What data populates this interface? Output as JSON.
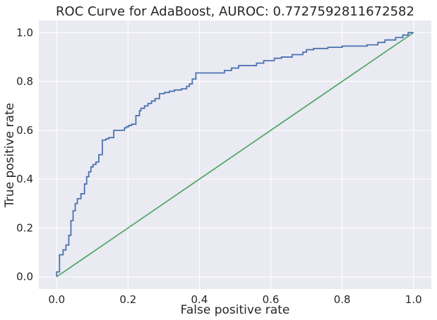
{
  "chart_data": {
    "type": "line",
    "title": "ROC Curve for AdaBoost, AUROC: 0.7727592811672582",
    "xlabel": "False positive rate",
    "ylabel": "True positive rate",
    "xlim": [
      -0.05,
      1.05
    ],
    "ylim": [
      -0.05,
      1.05
    ],
    "xticks": [
      "0.0",
      "0.2",
      "0.4",
      "0.6",
      "0.8",
      "1.0"
    ],
    "yticks": [
      "0.0",
      "0.2",
      "0.4",
      "0.6",
      "0.8",
      "1.0"
    ],
    "grid": true,
    "background": "#eaeaf2",
    "grid_color": "#ffffff",
    "series": [
      {
        "color": "#4c72b0",
        "step": true,
        "x": [
          0.0,
          0.0,
          0.008,
          0.008,
          0.018,
          0.018,
          0.026,
          0.026,
          0.034,
          0.034,
          0.04,
          0.04,
          0.046,
          0.046,
          0.052,
          0.052,
          0.058,
          0.058,
          0.068,
          0.068,
          0.078,
          0.078,
          0.084,
          0.084,
          0.09,
          0.09,
          0.096,
          0.096,
          0.102,
          0.102,
          0.11,
          0.11,
          0.118,
          0.118,
          0.128,
          0.128,
          0.138,
          0.138,
          0.146,
          0.146,
          0.16,
          0.16,
          0.19,
          0.19,
          0.196,
          0.196,
          0.202,
          0.202,
          0.21,
          0.21,
          0.222,
          0.222,
          0.232,
          0.232,
          0.236,
          0.236,
          0.246,
          0.246,
          0.256,
          0.256,
          0.266,
          0.266,
          0.276,
          0.276,
          0.288,
          0.288,
          0.302,
          0.302,
          0.316,
          0.316,
          0.33,
          0.33,
          0.35,
          0.35,
          0.364,
          0.364,
          0.372,
          0.372,
          0.38,
          0.38,
          0.39,
          0.39,
          0.47,
          0.47,
          0.49,
          0.49,
          0.51,
          0.51,
          0.56,
          0.56,
          0.58,
          0.58,
          0.61,
          0.61,
          0.63,
          0.63,
          0.66,
          0.66,
          0.69,
          0.69,
          0.7,
          0.7,
          0.72,
          0.72,
          0.76,
          0.76,
          0.8,
          0.8,
          0.87,
          0.87,
          0.9,
          0.9,
          0.92,
          0.92,
          0.95,
          0.95,
          0.97,
          0.97,
          0.985,
          0.985,
          1.0
        ],
        "y": [
          0.0,
          0.02,
          0.02,
          0.09,
          0.09,
          0.11,
          0.11,
          0.13,
          0.13,
          0.17,
          0.17,
          0.23,
          0.23,
          0.27,
          0.27,
          0.3,
          0.3,
          0.32,
          0.32,
          0.34,
          0.34,
          0.38,
          0.38,
          0.41,
          0.41,
          0.43,
          0.43,
          0.45,
          0.45,
          0.46,
          0.46,
          0.47,
          0.47,
          0.5,
          0.5,
          0.56,
          0.56,
          0.565,
          0.565,
          0.57,
          0.57,
          0.6,
          0.6,
          0.61,
          0.61,
          0.615,
          0.615,
          0.62,
          0.62,
          0.625,
          0.625,
          0.66,
          0.66,
          0.68,
          0.68,
          0.69,
          0.69,
          0.7,
          0.7,
          0.71,
          0.71,
          0.72,
          0.72,
          0.73,
          0.73,
          0.75,
          0.75,
          0.755,
          0.755,
          0.76,
          0.76,
          0.765,
          0.765,
          0.77,
          0.77,
          0.78,
          0.78,
          0.79,
          0.79,
          0.81,
          0.81,
          0.835,
          0.835,
          0.845,
          0.845,
          0.855,
          0.855,
          0.865,
          0.865,
          0.875,
          0.875,
          0.885,
          0.885,
          0.895,
          0.895,
          0.9,
          0.9,
          0.91,
          0.91,
          0.92,
          0.92,
          0.93,
          0.93,
          0.935,
          0.935,
          0.94,
          0.94,
          0.945,
          0.945,
          0.95,
          0.95,
          0.96,
          0.96,
          0.97,
          0.97,
          0.98,
          0.98,
          0.99,
          0.99,
          1.0,
          1.0
        ]
      },
      {
        "color": "#55a868",
        "step": false,
        "x": [
          0.0,
          1.0
        ],
        "y": [
          0.0,
          1.0
        ]
      }
    ]
  }
}
